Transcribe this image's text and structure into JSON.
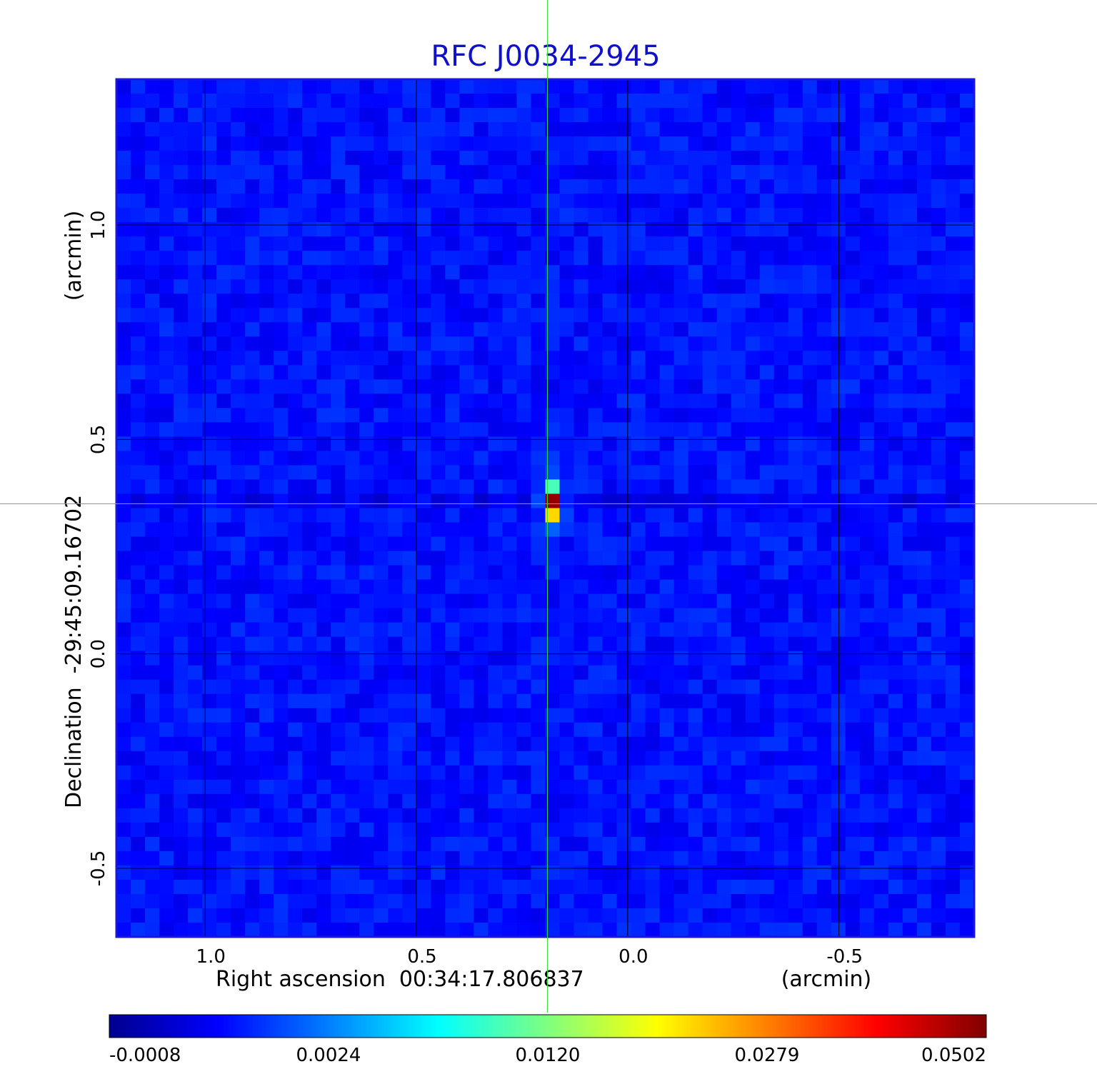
{
  "chart_data": {
    "type": "heatmap",
    "title": "RFC J0034-2945",
    "xlabel": "Right ascension  00:34:17.806837",
    "xunit": "(arcmin)",
    "ylabel": "Declination  -29:45:09.16702",
    "yunit": "(arcmin)",
    "xlim": [
      1.21,
      -0.82
    ],
    "ylim": [
      -0.66,
      1.34
    ],
    "x_reversed": true,
    "xticks": [
      1.0,
      0.5,
      0.0,
      -0.5
    ],
    "xtick_labels": [
      "1.0",
      "0.5",
      "0.0",
      "-0.5"
    ],
    "yticks": [
      1.0,
      0.5,
      0.0,
      -0.5
    ],
    "ytick_labels": [
      "1.0",
      "0.5",
      "0.0",
      "-0.5"
    ],
    "grid": true,
    "crosshair": {
      "x": 0.19,
      "y": 0.35,
      "color": "#33dd33"
    },
    "source_peak": {
      "x": 0.18,
      "y": 0.35,
      "value": 0.0502
    },
    "colorbar": {
      "ticks": [
        -0.0008,
        0.0024,
        0.012,
        0.0279,
        0.0502
      ],
      "labels": [
        "-0.0008",
        "0.0024",
        "0.0120",
        "0.0279",
        "0.0502"
      ],
      "colormap": "jet"
    }
  },
  "colors": {
    "title": "#1010cc",
    "frame": "#1a1acc",
    "grid": "#000000"
  }
}
